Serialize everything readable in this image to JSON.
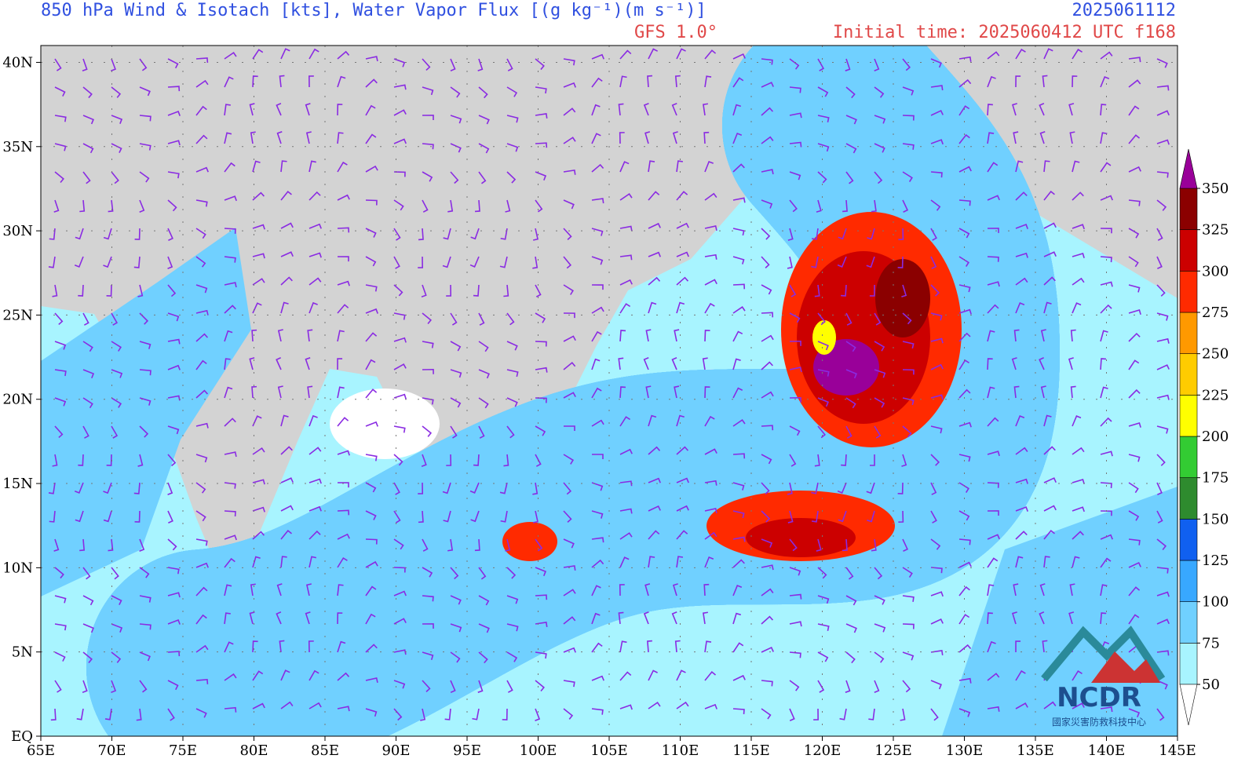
{
  "header": {
    "title": "850 hPa  Wind & Isotach [kts], Water Vapor Flux [(g kg⁻¹)(m s⁻¹)]",
    "valid_time": "2025061112",
    "model": "GFS 1.0°",
    "init": "Initial time: 2025060412 UTC f168"
  },
  "map": {
    "lon_ticks": [
      {
        "value": 65,
        "label": "65E"
      },
      {
        "value": 70,
        "label": "70E"
      },
      {
        "value": 75,
        "label": "75E"
      },
      {
        "value": 80,
        "label": "80E"
      },
      {
        "value": 85,
        "label": "85E"
      },
      {
        "value": 90,
        "label": "90E"
      },
      {
        "value": 95,
        "label": "95E"
      },
      {
        "value": 100,
        "label": "100E"
      },
      {
        "value": 105,
        "label": "105E"
      },
      {
        "value": 110,
        "label": "110E"
      },
      {
        "value": 115,
        "label": "115E"
      },
      {
        "value": 120,
        "label": "120E"
      },
      {
        "value": 125,
        "label": "125E"
      },
      {
        "value": 130,
        "label": "130E"
      },
      {
        "value": 135,
        "label": "135E"
      },
      {
        "value": 140,
        "label": "140E"
      },
      {
        "value": 145,
        "label": "145E"
      }
    ],
    "lat_ticks": [
      {
        "value": 0,
        "label": "EQ"
      },
      {
        "value": 5,
        "label": "5N"
      },
      {
        "value": 10,
        "label": "10N"
      },
      {
        "value": 15,
        "label": "15N"
      },
      {
        "value": 20,
        "label": "20N"
      },
      {
        "value": 25,
        "label": "25N"
      },
      {
        "value": 30,
        "label": "30N"
      },
      {
        "value": 35,
        "label": "35N"
      },
      {
        "value": 40,
        "label": "40N"
      }
    ],
    "lon_range": [
      65,
      145
    ],
    "lat_range": [
      0,
      41
    ]
  },
  "colorbar": {
    "levels": [
      50,
      75,
      100,
      125,
      150,
      175,
      200,
      225,
      250,
      275,
      300,
      325,
      350
    ],
    "colors": [
      "#a8f4ff",
      "#70d0ff",
      "#38a8ff",
      "#1060f0",
      "#2e8b2e",
      "#33cc33",
      "#ffff00",
      "#ffcc00",
      "#ff9900",
      "#ff2a00",
      "#cc0000",
      "#8b0000"
    ],
    "under_color": "#ffffff",
    "over_color": "#990099"
  },
  "logo": {
    "name": "NCDR",
    "org": "國家災害防救科技中心"
  }
}
